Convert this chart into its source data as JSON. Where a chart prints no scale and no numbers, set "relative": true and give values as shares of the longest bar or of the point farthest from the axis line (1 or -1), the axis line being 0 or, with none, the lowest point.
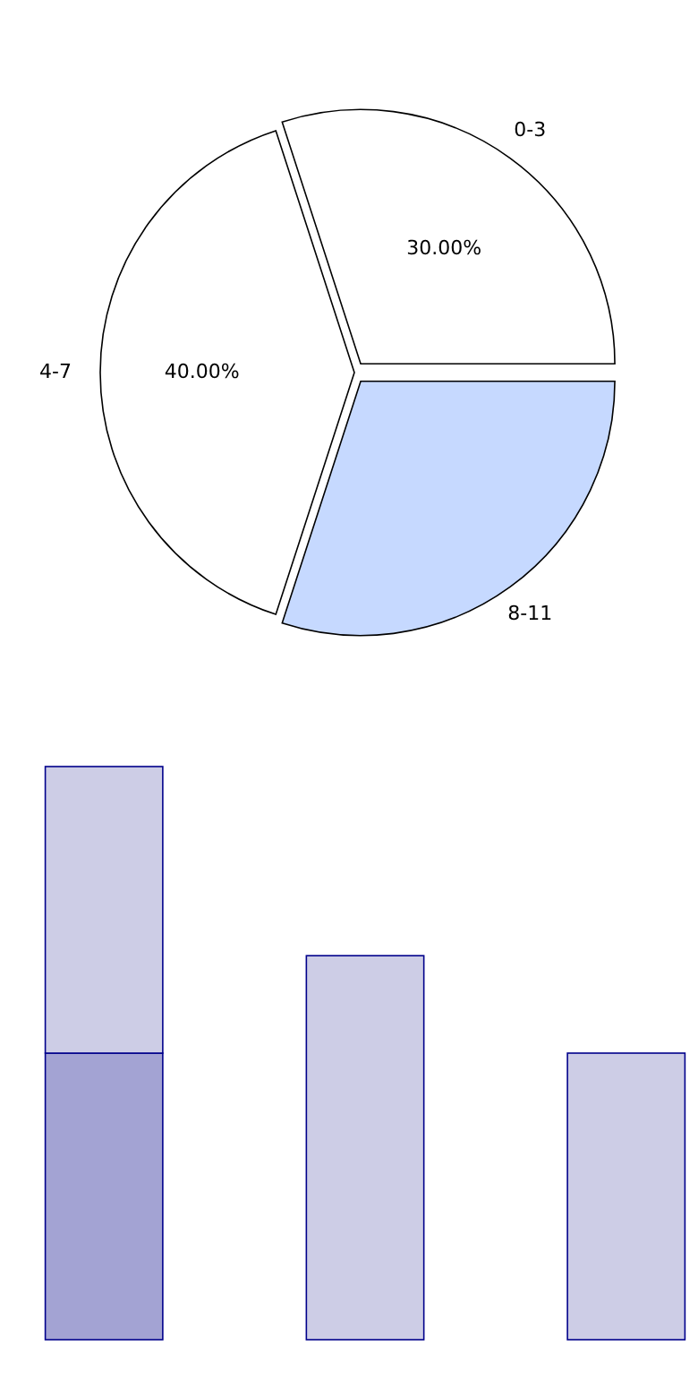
{
  "chart_data": [
    {
      "type": "pie",
      "categories": [
        "0-3",
        "4-7",
        "8-11"
      ],
      "values": [
        30,
        40,
        30
      ],
      "colors": [
        "#ffffff",
        "#ffffff",
        "#c6d9ff"
      ],
      "value_labels": [
        "30.00%",
        "40.00%",
        null
      ]
    },
    {
      "type": "bar",
      "categories": [
        null,
        null,
        null
      ],
      "relative": true,
      "stacked": true,
      "series": [
        {
          "color": "#a3a3d3",
          "values": [
            0.5,
            0,
            0
          ]
        },
        {
          "color": "#cdcde6",
          "values": [
            0.5,
            0.67,
            0.5
          ]
        }
      ]
    }
  ]
}
